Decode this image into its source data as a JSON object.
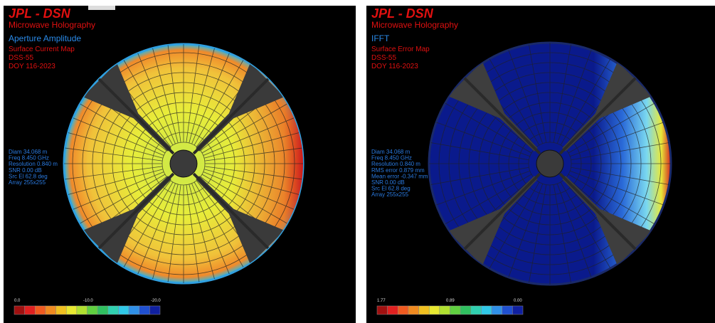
{
  "panels": [
    {
      "brand": "JPL - DSN",
      "subtitle": "Microwave Holography",
      "mode": "Aperture Amplitude",
      "map": "Surface Current Map",
      "station": "DSS-55",
      "date": "DOY 116-2023",
      "info": [
        "Diam 34.068 m",
        "Freq 8.450 GHz",
        "Resolution 0.840 m",
        "SNR 0.00 dB",
        "Src El 62.8 deg",
        "Array 255x255"
      ],
      "colorbar_labels": [
        "0.0",
        "-10.0",
        "-20.0"
      ]
    },
    {
      "brand": "JPL - DSN",
      "subtitle": "Microwave Holography",
      "mode": "IFFT",
      "map": "Surface Error Map",
      "station": "DSS-55",
      "date": "DOY 116-2023",
      "info": [
        "Diam 34.068 m",
        "Freq 8.450 GHz",
        "Resolution 0.840 m",
        "RMS error 0.879 mm",
        "Mean error -0.347 mm",
        "SNR 0.00 dB",
        "Src El 62.8 deg",
        "Array 255x255"
      ],
      "colorbar_labels": [
        "1.77",
        "0.89",
        "0.00"
      ]
    }
  ]
}
